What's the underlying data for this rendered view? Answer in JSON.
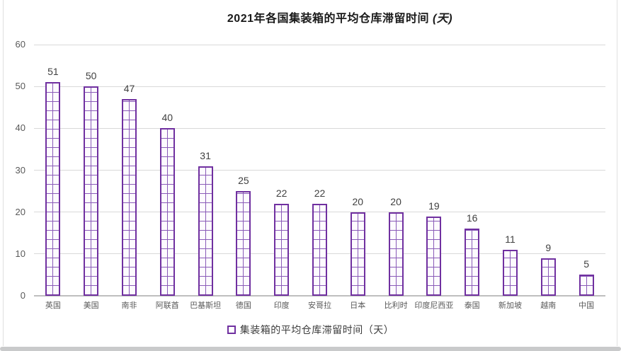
{
  "title": {
    "main": "2021年各国集装箱的平均仓库滞留时间",
    "suffix": " (天)"
  },
  "legend": {
    "label": "集装箱的平均仓库滞留时间（天）"
  },
  "colors": {
    "accent": "#7030a0",
    "pattern_line": "#8a5bb8",
    "bar_fill": "#fdfbfe",
    "gridline": "#d9d9d9",
    "axis_line": "#bfbfbf",
    "axis_text": "#595959",
    "value_text": "#404040",
    "title_text": "#1a1a1a"
  },
  "chart_data": {
    "type": "bar",
    "title": "2021年各国集装箱的平均仓库滞留时间 (天)",
    "categories": [
      "英国",
      "美国",
      "南非",
      "阿联酋",
      "巴基斯坦",
      "德国",
      "印度",
      "安哥拉",
      "日本",
      "比利时",
      "印度尼西亚",
      "泰国",
      "新加坡",
      "越南",
      "中国"
    ],
    "values": [
      51,
      50,
      47,
      40,
      31,
      25,
      22,
      22,
      20,
      20,
      19,
      16,
      11,
      9,
      5
    ],
    "series_name": "集装箱的平均仓库滞留时间（天）",
    "xlabel": "",
    "ylabel": "",
    "ylim": [
      0,
      60
    ],
    "yticks": [
      0,
      10,
      20,
      30,
      40,
      50,
      60
    ],
    "grid": true,
    "data_labels": true,
    "legend_position": "bottom",
    "bar_style": "white bars with purple outline and purple grid (lattice) pattern fill"
  }
}
